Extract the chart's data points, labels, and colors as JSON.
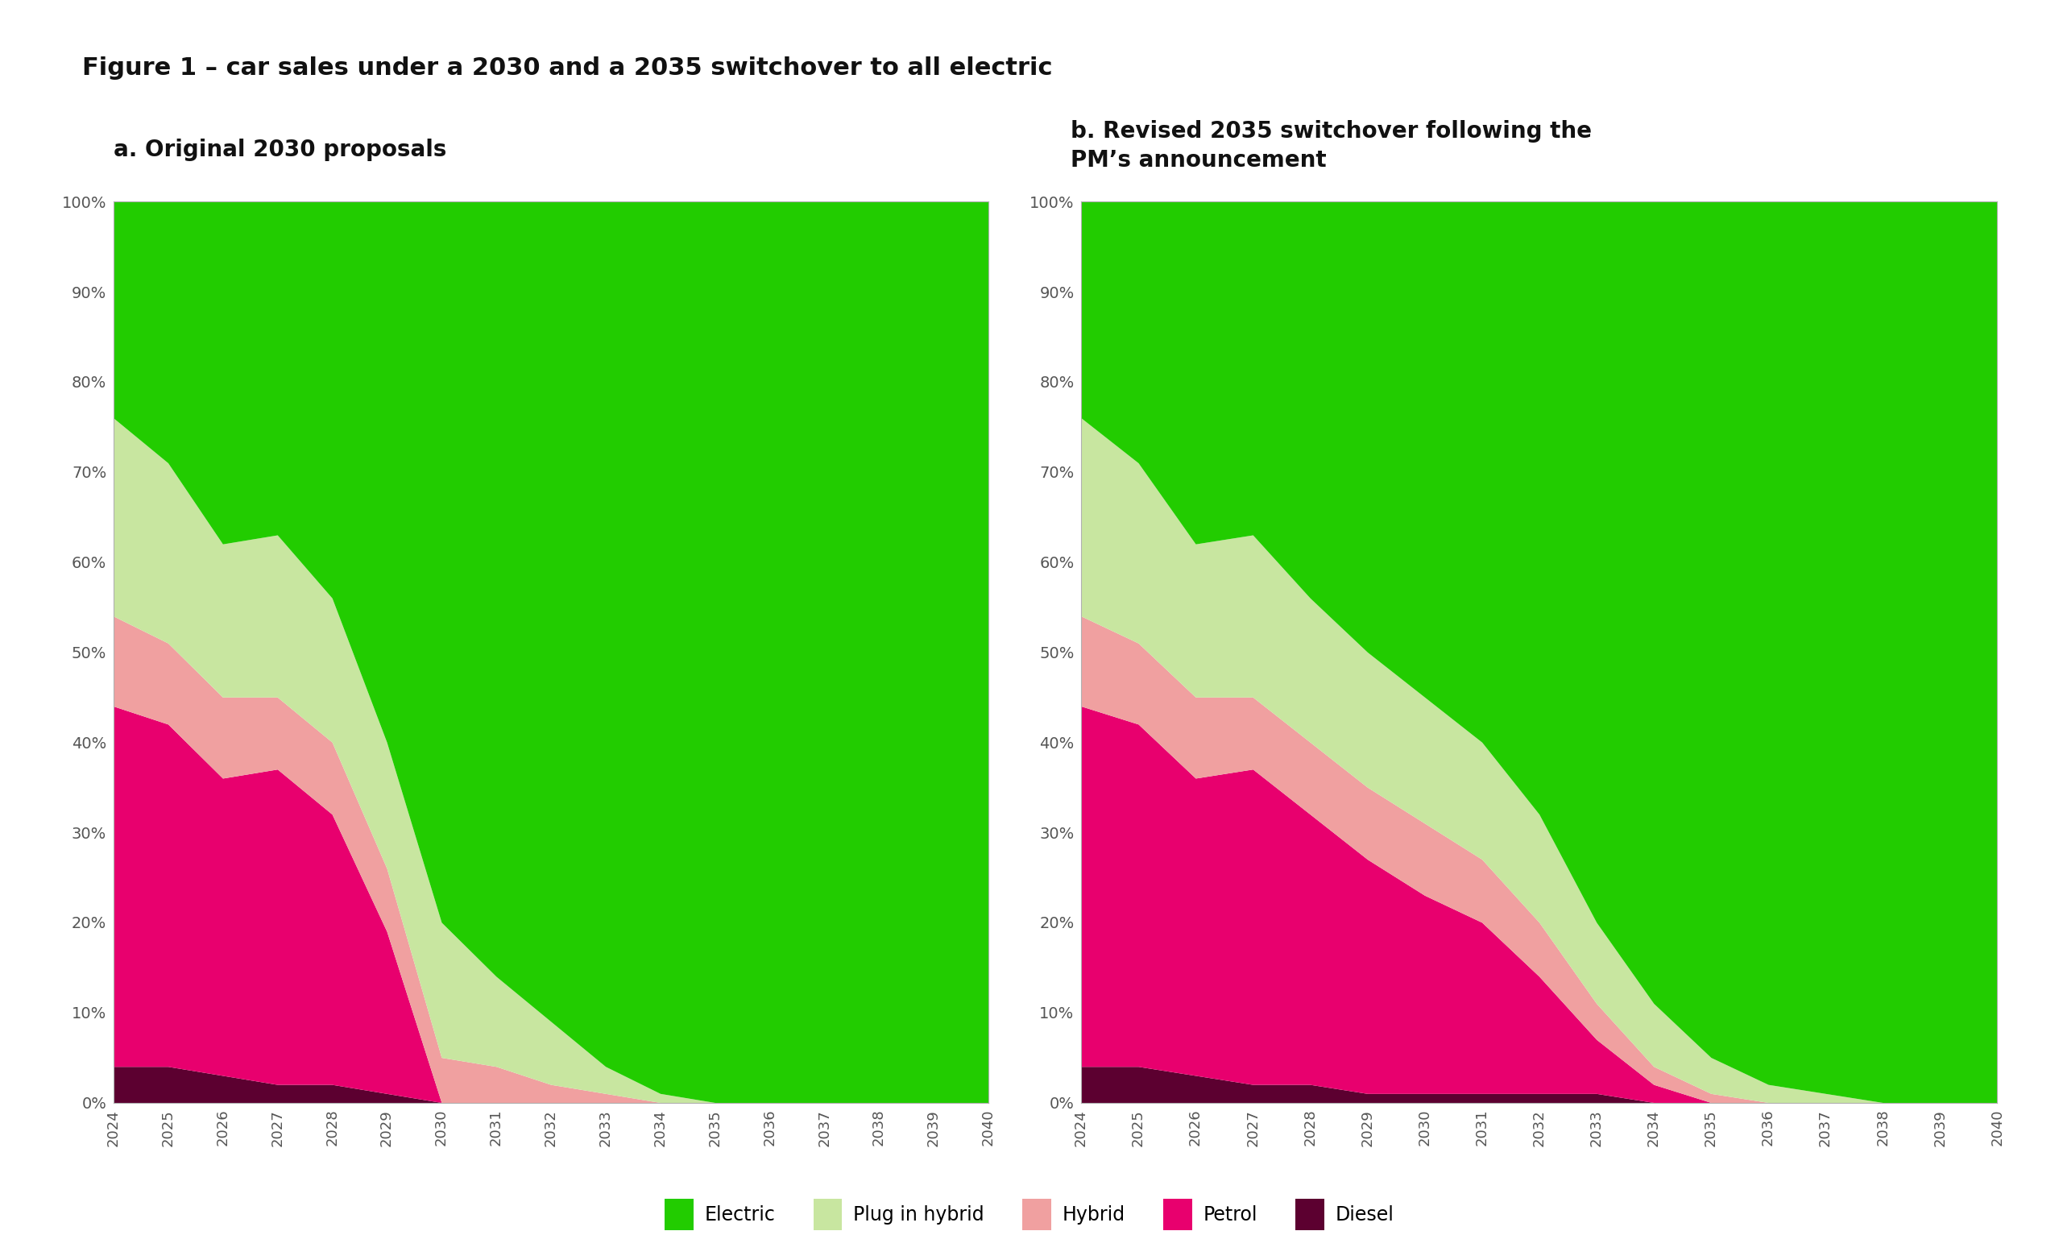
{
  "title": "Figure 1 – car sales under a 2030 and a 2035 switchover to all electric",
  "subtitle_a": "a. Original 2030 proposals",
  "subtitle_b": "b. Revised 2035 switchover following the\nPM’s announcement",
  "years": [
    2024,
    2025,
    2026,
    2027,
    2028,
    2029,
    2030,
    2031,
    2032,
    2033,
    2034,
    2035,
    2036,
    2037,
    2038,
    2039,
    2040
  ],
  "colors": {
    "electric": "#22cc00",
    "plug_hybrid": "#c8e6a0",
    "hybrid": "#f0a0a0",
    "petrol": "#e8006e",
    "diesel": "#5c0030"
  },
  "legend_labels": [
    "Electric",
    "Plug in hybrid",
    "Hybrid",
    "Petrol",
    "Diesel"
  ],
  "chart_a": {
    "diesel": [
      0.04,
      0.04,
      0.03,
      0.02,
      0.02,
      0.01,
      0.0,
      0.0,
      0.0,
      0.0,
      0.0,
      0.0,
      0.0,
      0.0,
      0.0,
      0.0,
      0.0
    ],
    "petrol": [
      0.4,
      0.38,
      0.33,
      0.35,
      0.3,
      0.18,
      0.0,
      0.0,
      0.0,
      0.0,
      0.0,
      0.0,
      0.0,
      0.0,
      0.0,
      0.0,
      0.0
    ],
    "hybrid": [
      0.1,
      0.09,
      0.09,
      0.08,
      0.08,
      0.07,
      0.05,
      0.04,
      0.02,
      0.01,
      0.0,
      0.0,
      0.0,
      0.0,
      0.0,
      0.0,
      0.0
    ],
    "plug_hybrid": [
      0.22,
      0.2,
      0.17,
      0.18,
      0.16,
      0.14,
      0.15,
      0.1,
      0.07,
      0.03,
      0.01,
      0.0,
      0.0,
      0.0,
      0.0,
      0.0,
      0.0
    ],
    "electric": [
      0.24,
      0.29,
      0.38,
      0.37,
      0.44,
      0.6,
      0.8,
      0.86,
      0.91,
      0.96,
      0.99,
      1.0,
      1.0,
      1.0,
      1.0,
      1.0,
      1.0
    ]
  },
  "chart_b": {
    "diesel": [
      0.04,
      0.04,
      0.03,
      0.02,
      0.02,
      0.01,
      0.01,
      0.01,
      0.01,
      0.01,
      0.0,
      0.0,
      0.0,
      0.0,
      0.0,
      0.0,
      0.0
    ],
    "petrol": [
      0.4,
      0.38,
      0.33,
      0.35,
      0.3,
      0.26,
      0.22,
      0.19,
      0.13,
      0.06,
      0.02,
      0.0,
      0.0,
      0.0,
      0.0,
      0.0,
      0.0
    ],
    "hybrid": [
      0.1,
      0.09,
      0.09,
      0.08,
      0.08,
      0.08,
      0.08,
      0.07,
      0.06,
      0.04,
      0.02,
      0.01,
      0.0,
      0.0,
      0.0,
      0.0,
      0.0
    ],
    "plug_hybrid": [
      0.22,
      0.2,
      0.17,
      0.18,
      0.16,
      0.15,
      0.14,
      0.13,
      0.12,
      0.09,
      0.07,
      0.04,
      0.02,
      0.01,
      0.0,
      0.0,
      0.0
    ],
    "electric": [
      0.24,
      0.29,
      0.38,
      0.37,
      0.44,
      0.5,
      0.55,
      0.6,
      0.68,
      0.8,
      0.89,
      0.95,
      0.98,
      0.99,
      1.0,
      1.0,
      1.0
    ]
  },
  "yticks": [
    0.0,
    0.1,
    0.2,
    0.3,
    0.4,
    0.5,
    0.6,
    0.7,
    0.8,
    0.9,
    1.0
  ],
  "ytick_labels": [
    "0%",
    "10%",
    "20%",
    "30%",
    "40%",
    "50%",
    "60%",
    "70%",
    "80%",
    "90%",
    "100%"
  ],
  "background_color": "#ffffff",
  "chart_bg": "#ffffff",
  "border_color": "#b0b0b0"
}
